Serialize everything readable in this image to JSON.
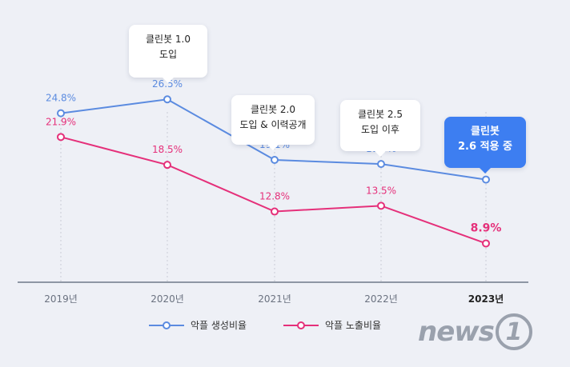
{
  "chart_data": {
    "type": "line",
    "categories": [
      "2019년",
      "2020년",
      "2021년",
      "2022년",
      "2023년"
    ],
    "highlight_category": "2023년",
    "ylim": [
      0,
      30
    ],
    "series": [
      {
        "name": "악플 생성비율",
        "color": "#5b8be0",
        "values": [
          24.8,
          26.5,
          19.1,
          18.6,
          16.7
        ],
        "labels": [
          "24.8%",
          "26.5%",
          "19.1%",
          "18.6%",
          "16.7%"
        ]
      },
      {
        "name": "악플 노출비율",
        "color": "#e5307a",
        "values": [
          21.9,
          18.5,
          12.8,
          13.5,
          8.9
        ],
        "labels": [
          "21.9%",
          "18.5%",
          "12.8%",
          "13.5%",
          "8.9%"
        ]
      }
    ],
    "annotations": [
      {
        "category": "2020년",
        "lines": [
          "클린봇 1.0",
          "도입"
        ]
      },
      {
        "category": "2021년",
        "lines": [
          "클린봇 2.0",
          "도입 & 이력공개"
        ]
      },
      {
        "category": "2022년",
        "lines": [
          "클린봇 2.5",
          "도입 이후"
        ]
      },
      {
        "category": "2023년",
        "lines": [
          "클린봇",
          "2.6 적용 중"
        ],
        "highlight": true
      }
    ],
    "grid": "vertical-dotted",
    "legend": "bottom-center"
  },
  "watermark": {
    "text": "news",
    "badge": "1"
  }
}
